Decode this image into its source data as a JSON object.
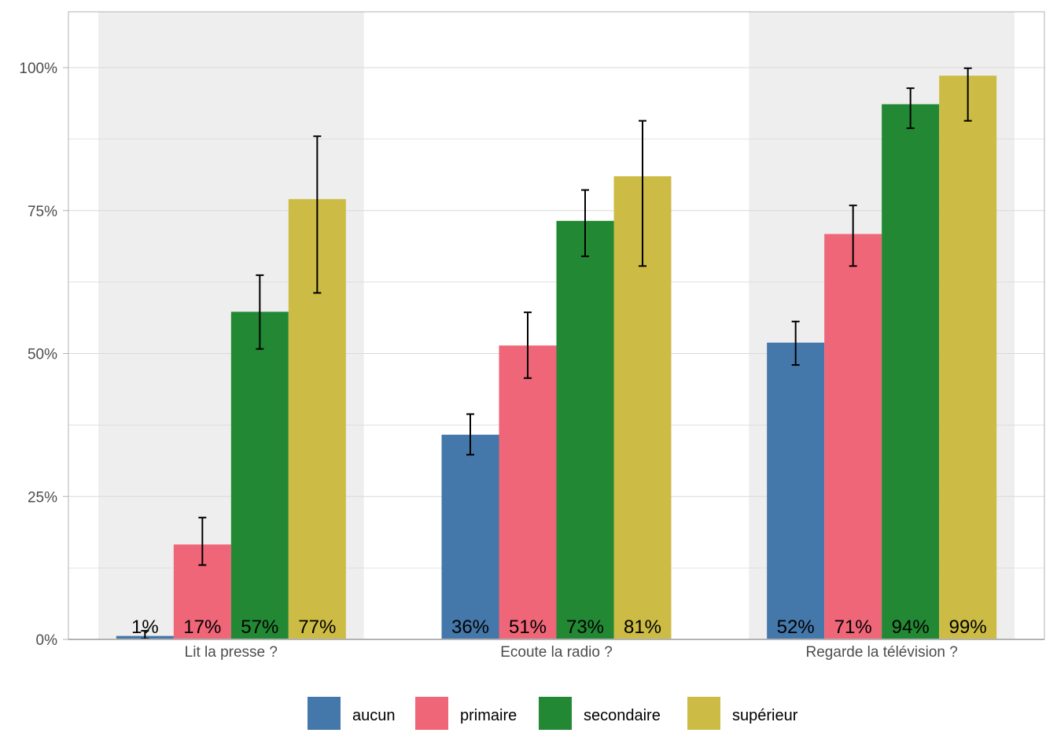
{
  "chart_data": {
    "type": "bar",
    "title": "",
    "xlabel": "",
    "ylabel": "",
    "ylim": [
      0,
      100
    ],
    "y_ticks": [
      0,
      25,
      50,
      75,
      100
    ],
    "y_tick_labels": [
      "0%",
      "25%",
      "50%",
      "75%",
      "100%"
    ],
    "grid": true,
    "legend_position": "bottom",
    "categories": [
      "Lit la presse ?",
      "Ecoute la radio ?",
      "Regarde la télévision ?"
    ],
    "series": [
      {
        "name": "aucun",
        "color": "#4477aa",
        "values": [
          0.6,
          35.8,
          51.9
        ],
        "labels": [
          "1%",
          "36%",
          "52%"
        ],
        "ci_low": [
          0.1,
          32.3,
          48.0
        ],
        "ci_high": [
          1.5,
          39.4,
          55.6
        ]
      },
      {
        "name": "primaire",
        "color": "#ee6677",
        "values": [
          16.6,
          51.4,
          70.9
        ],
        "labels": [
          "17%",
          "51%",
          "71%"
        ],
        "ci_low": [
          13.0,
          45.7,
          65.3
        ],
        "ci_high": [
          21.3,
          57.2,
          75.9
        ]
      },
      {
        "name": "secondaire",
        "color": "#228833",
        "values": [
          57.3,
          73.2,
          93.6
        ],
        "labels": [
          "57%",
          "73%",
          "94%"
        ],
        "ci_low": [
          50.8,
          67.0,
          89.4
        ],
        "ci_high": [
          63.7,
          78.6,
          96.4
        ]
      },
      {
        "name": "supérieur",
        "color": "#ccbb44",
        "values": [
          77.0,
          81.0,
          98.6
        ],
        "labels": [
          "77%",
          "81%",
          "99%"
        ],
        "ci_low": [
          60.6,
          65.3,
          90.7
        ],
        "ci_high": [
          88.0,
          90.7,
          99.9
        ]
      }
    ]
  },
  "colors": {
    "panel_stripe": "#eeeeee",
    "grid": "#d9d9d9",
    "axis": "#b3b3b3",
    "text": "#4d4d4d"
  }
}
